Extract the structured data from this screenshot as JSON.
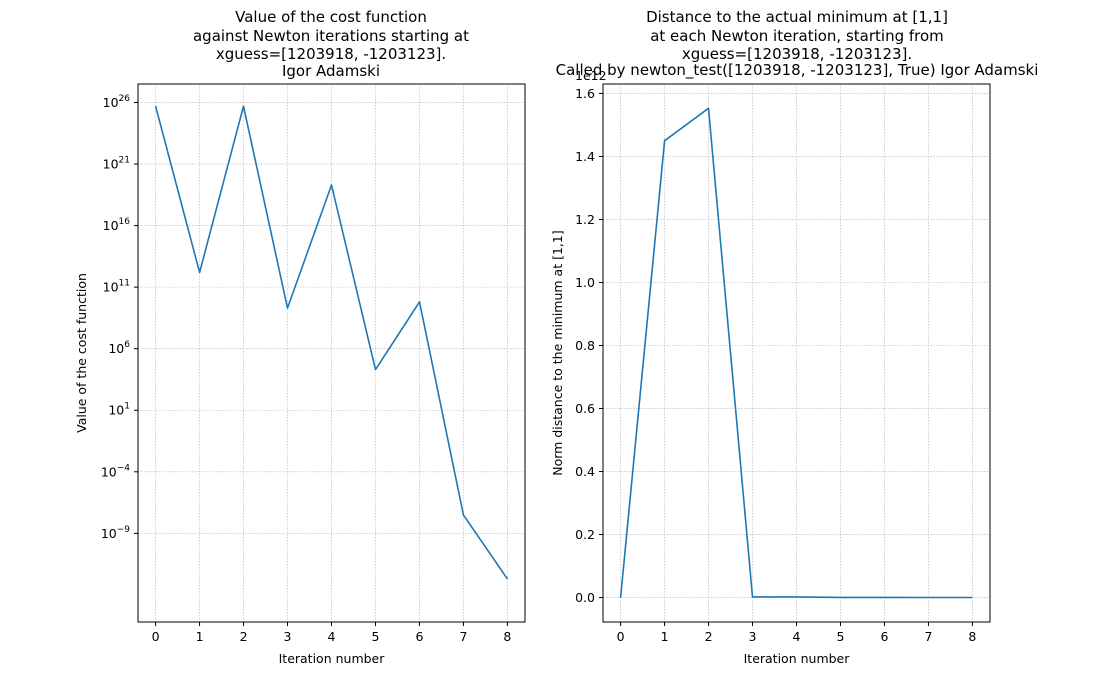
{
  "chart_data": [
    {
      "type": "line",
      "title_lines": [
        "Value of the cost function",
        "against Newton iterations starting at",
        "xguess=[1203918, -1203123].",
        "Igor Adamski"
      ],
      "xlabel": "Iteration number",
      "ylabel": "Value of the cost function",
      "yscale": "log",
      "grid": true,
      "x": [
        0,
        1,
        2,
        3,
        4,
        5,
        6,
        7,
        8
      ],
      "y_log10": [
        25.7,
        12.2,
        25.7,
        9.3,
        19.3,
        4.3,
        9.8,
        -7.5,
        -12.7
      ],
      "xlim": [
        -0.4,
        8.4
      ],
      "ylim_log10": [
        -16.2,
        27.5
      ],
      "xticks": [
        "0",
        "1",
        "2",
        "3",
        "4",
        "5",
        "6",
        "7",
        "8"
      ],
      "yticks_log10": [
        26,
        21,
        16,
        11,
        6,
        1,
        -4,
        -9
      ],
      "ytick_labels": [
        "10",
        "10",
        "10",
        "10",
        "10",
        "10",
        "10",
        "10"
      ],
      "ytick_exponents": [
        "26",
        "21",
        "16",
        "11",
        "6",
        "1",
        "−4",
        "−9"
      ],
      "color": "#1f77b4"
    },
    {
      "type": "line",
      "title_lines": [
        "Distance to the actual minimum at [1,1]",
        "at each Newton iteration, starting from",
        "xguess=[1203918, -1203123].",
        "Called by newton_test([1203918, -1203123], True)  Igor Adamski"
      ],
      "xlabel": "Iteration number",
      "ylabel": "Norm distance to the minimum at [1,1]",
      "offset_label": "1e12",
      "grid": true,
      "x": [
        0,
        1,
        2,
        3,
        4,
        5,
        6,
        7,
        8
      ],
      "y": [
        0.0,
        1.45,
        1.553,
        0.002,
        0.002,
        0.0005,
        0.0004,
        0.0003,
        0.0002
      ],
      "xlim": [
        -0.4,
        8.4
      ],
      "ylim": [
        -0.0776,
        1.63
      ],
      "xticks": [
        "0",
        "1",
        "2",
        "3",
        "4",
        "5",
        "6",
        "7",
        "8"
      ],
      "yticks": [
        0.0,
        0.2,
        0.4,
        0.6,
        0.8,
        1.0,
        1.2,
        1.4,
        1.6
      ],
      "ytick_labels": [
        "0.0",
        "0.2",
        "0.4",
        "0.6",
        "0.8",
        "1.0",
        "1.2",
        "1.4",
        "1.6"
      ],
      "color": "#1f77b4"
    }
  ]
}
